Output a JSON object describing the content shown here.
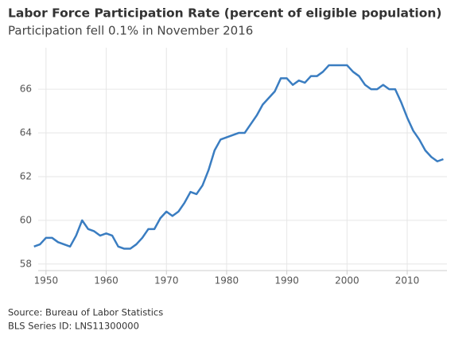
{
  "chart_data": {
    "type": "line",
    "title": "Labor Force Participation Rate (percent of eligible population)",
    "subtitle": "Participation fell 0.1% in November 2016",
    "notes": [
      "Source: Bureau of Labor Statistics",
      "BLS Series ID: LNS11300000"
    ],
    "x": [
      1948,
      1949,
      1950,
      1951,
      1952,
      1953,
      1954,
      1955,
      1956,
      1957,
      1958,
      1959,
      1960,
      1961,
      1962,
      1963,
      1964,
      1965,
      1966,
      1967,
      1968,
      1969,
      1970,
      1971,
      1972,
      1973,
      1974,
      1975,
      1976,
      1977,
      1978,
      1979,
      1980,
      1981,
      1982,
      1983,
      1984,
      1985,
      1986,
      1987,
      1988,
      1989,
      1990,
      1991,
      1992,
      1993,
      1994,
      1995,
      1996,
      1997,
      1998,
      1999,
      2000,
      2001,
      2002,
      2003,
      2004,
      2005,
      2006,
      2007,
      2008,
      2009,
      2010,
      2011,
      2012,
      2013,
      2014,
      2015,
      2016
    ],
    "series": [
      {
        "name": "Labor Force Participation Rate",
        "color": "#3a7dc1",
        "values": [
          58.8,
          58.9,
          59.2,
          59.2,
          59.0,
          58.9,
          58.8,
          59.3,
          60.0,
          59.6,
          59.5,
          59.3,
          59.4,
          59.3,
          58.8,
          58.7,
          58.7,
          58.9,
          59.2,
          59.6,
          59.6,
          60.1,
          60.4,
          60.2,
          60.4,
          60.8,
          61.3,
          61.2,
          61.6,
          62.3,
          63.2,
          63.7,
          63.8,
          63.9,
          64.0,
          64.0,
          64.4,
          64.8,
          65.3,
          65.6,
          65.9,
          66.5,
          66.5,
          66.2,
          66.4,
          66.3,
          66.6,
          66.6,
          66.8,
          67.1,
          67.1,
          67.1,
          67.1,
          66.8,
          66.6,
          66.2,
          66.0,
          66.0,
          66.2,
          66.0,
          66.0,
          65.4,
          64.7,
          64.1,
          63.7,
          63.2,
          62.9,
          62.7,
          62.8
        ]
      }
    ],
    "xlim": [
      1948.7,
      2016.6
    ],
    "xticks": [
      1950,
      1960,
      1970,
      1980,
      1990,
      2000,
      2010
    ],
    "ylim": [
      57.7,
      67.9
    ],
    "yticks": [
      58,
      60,
      62,
      64,
      66
    ],
    "grid": true
  }
}
